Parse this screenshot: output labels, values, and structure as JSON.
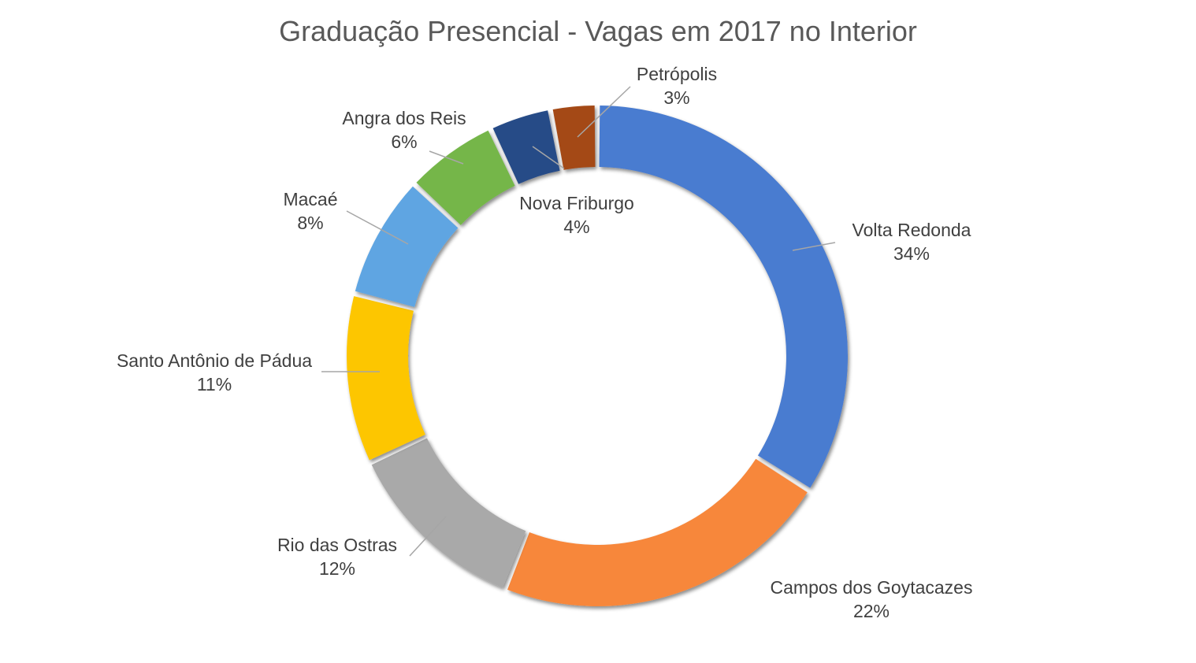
{
  "chart_data": {
    "type": "pie",
    "variant": "donut",
    "title": "Graduação Presencial - Vagas em 2017 no Interior",
    "slices": [
      {
        "name": "Volta Redonda",
        "label": "34%",
        "value": 34,
        "color": "#4a7bd0"
      },
      {
        "name": "Campos dos Goytacazes",
        "label": "22%",
        "value": 22,
        "color": "#f7873a"
      },
      {
        "name": "Rio das Ostras",
        "label": "12%",
        "value": 12,
        "color": "#a9a9a9"
      },
      {
        "name": "Santo Antônio de Pádua",
        "label": "11%",
        "value": 11,
        "color": "#fdc600"
      },
      {
        "name": "Macaé",
        "label": "8%",
        "value": 8,
        "color": "#5ea5e2"
      },
      {
        "name": "Angra dos Reis",
        "label": "6%",
        "value": 6,
        "color": "#74b64a"
      },
      {
        "name": "Nova Friburgo",
        "label": "4%",
        "value": 4,
        "color": "#284b87"
      },
      {
        "name": "Petrópolis",
        "label": "3%",
        "value": 3,
        "color": "#a44a14"
      }
    ],
    "start_angle_deg": 0,
    "direction": "clockwise",
    "legend": "none"
  }
}
